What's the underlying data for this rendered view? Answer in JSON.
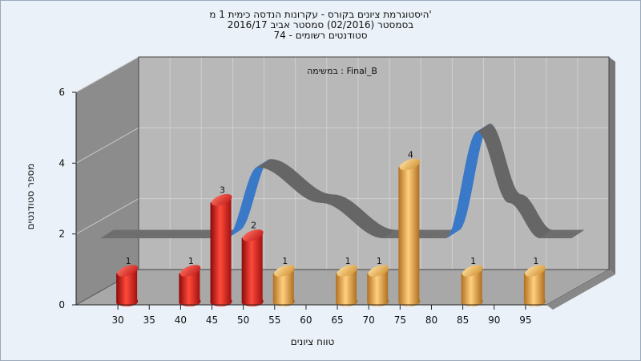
{
  "chart_data": {
    "type": "bar",
    "title_lines": [
      "היסטוגרמת ציונים בקורס - עקרונות הנדסה כימית 1 מ'",
      "בסמסטר  (02/2016)  סמסטר אביב 2016/17",
      "סטודנטים רשומים - 74"
    ],
    "annotation": "במשימה : Final_B",
    "xlabel": "טווח ציונים",
    "ylabel": "מספר סטודנטים",
    "x_ticks": [
      "30",
      "35",
      "40",
      "45",
      "50",
      "55",
      "60",
      "65",
      "70",
      "75",
      "80",
      "85",
      "90",
      "95"
    ],
    "y_ticks": [
      "0",
      "2",
      "4",
      "6"
    ],
    "ylim": [
      0,
      6
    ],
    "grid": true,
    "bars": [
      {
        "x": 30,
        "value": 1,
        "label": "1",
        "color": "red"
      },
      {
        "x": 40,
        "value": 1,
        "label": "1",
        "color": "red"
      },
      {
        "x": 45,
        "value": 3,
        "label": "3",
        "color": "red"
      },
      {
        "x": 50,
        "value": 2,
        "label": "2",
        "color": "red"
      },
      {
        "x": 55,
        "value": 1,
        "label": "1",
        "color": "gold"
      },
      {
        "x": 65,
        "value": 1,
        "label": "1",
        "color": "gold"
      },
      {
        "x": 70,
        "value": 1,
        "label": "1",
        "color": "gold"
      },
      {
        "x": 75,
        "value": 4,
        "label": "4",
        "color": "gold"
      },
      {
        "x": 85,
        "value": 1,
        "label": "1",
        "color": "gold"
      },
      {
        "x": 95,
        "value": 1,
        "label": "1",
        "color": "gold"
      }
    ],
    "curve": {
      "x": [
        25,
        45,
        50,
        60,
        70,
        75,
        80,
        85,
        90,
        95,
        100
      ],
      "y": [
        1.5,
        1.5,
        3.5,
        2.5,
        1.5,
        1.5,
        1.5,
        4.5,
        2.5,
        1.5,
        1.5
      ],
      "colors": {
        "rising": "#3a78c8",
        "falling": "#666666",
        "flat": "#6e6e6e"
      }
    },
    "colors": {
      "red_bar": "#e02020",
      "gold_bar": "#e0a040",
      "back_wall": "#b8b8b8",
      "side_wall": "#8c8c8c",
      "floor": "#a8a8a8"
    }
  }
}
